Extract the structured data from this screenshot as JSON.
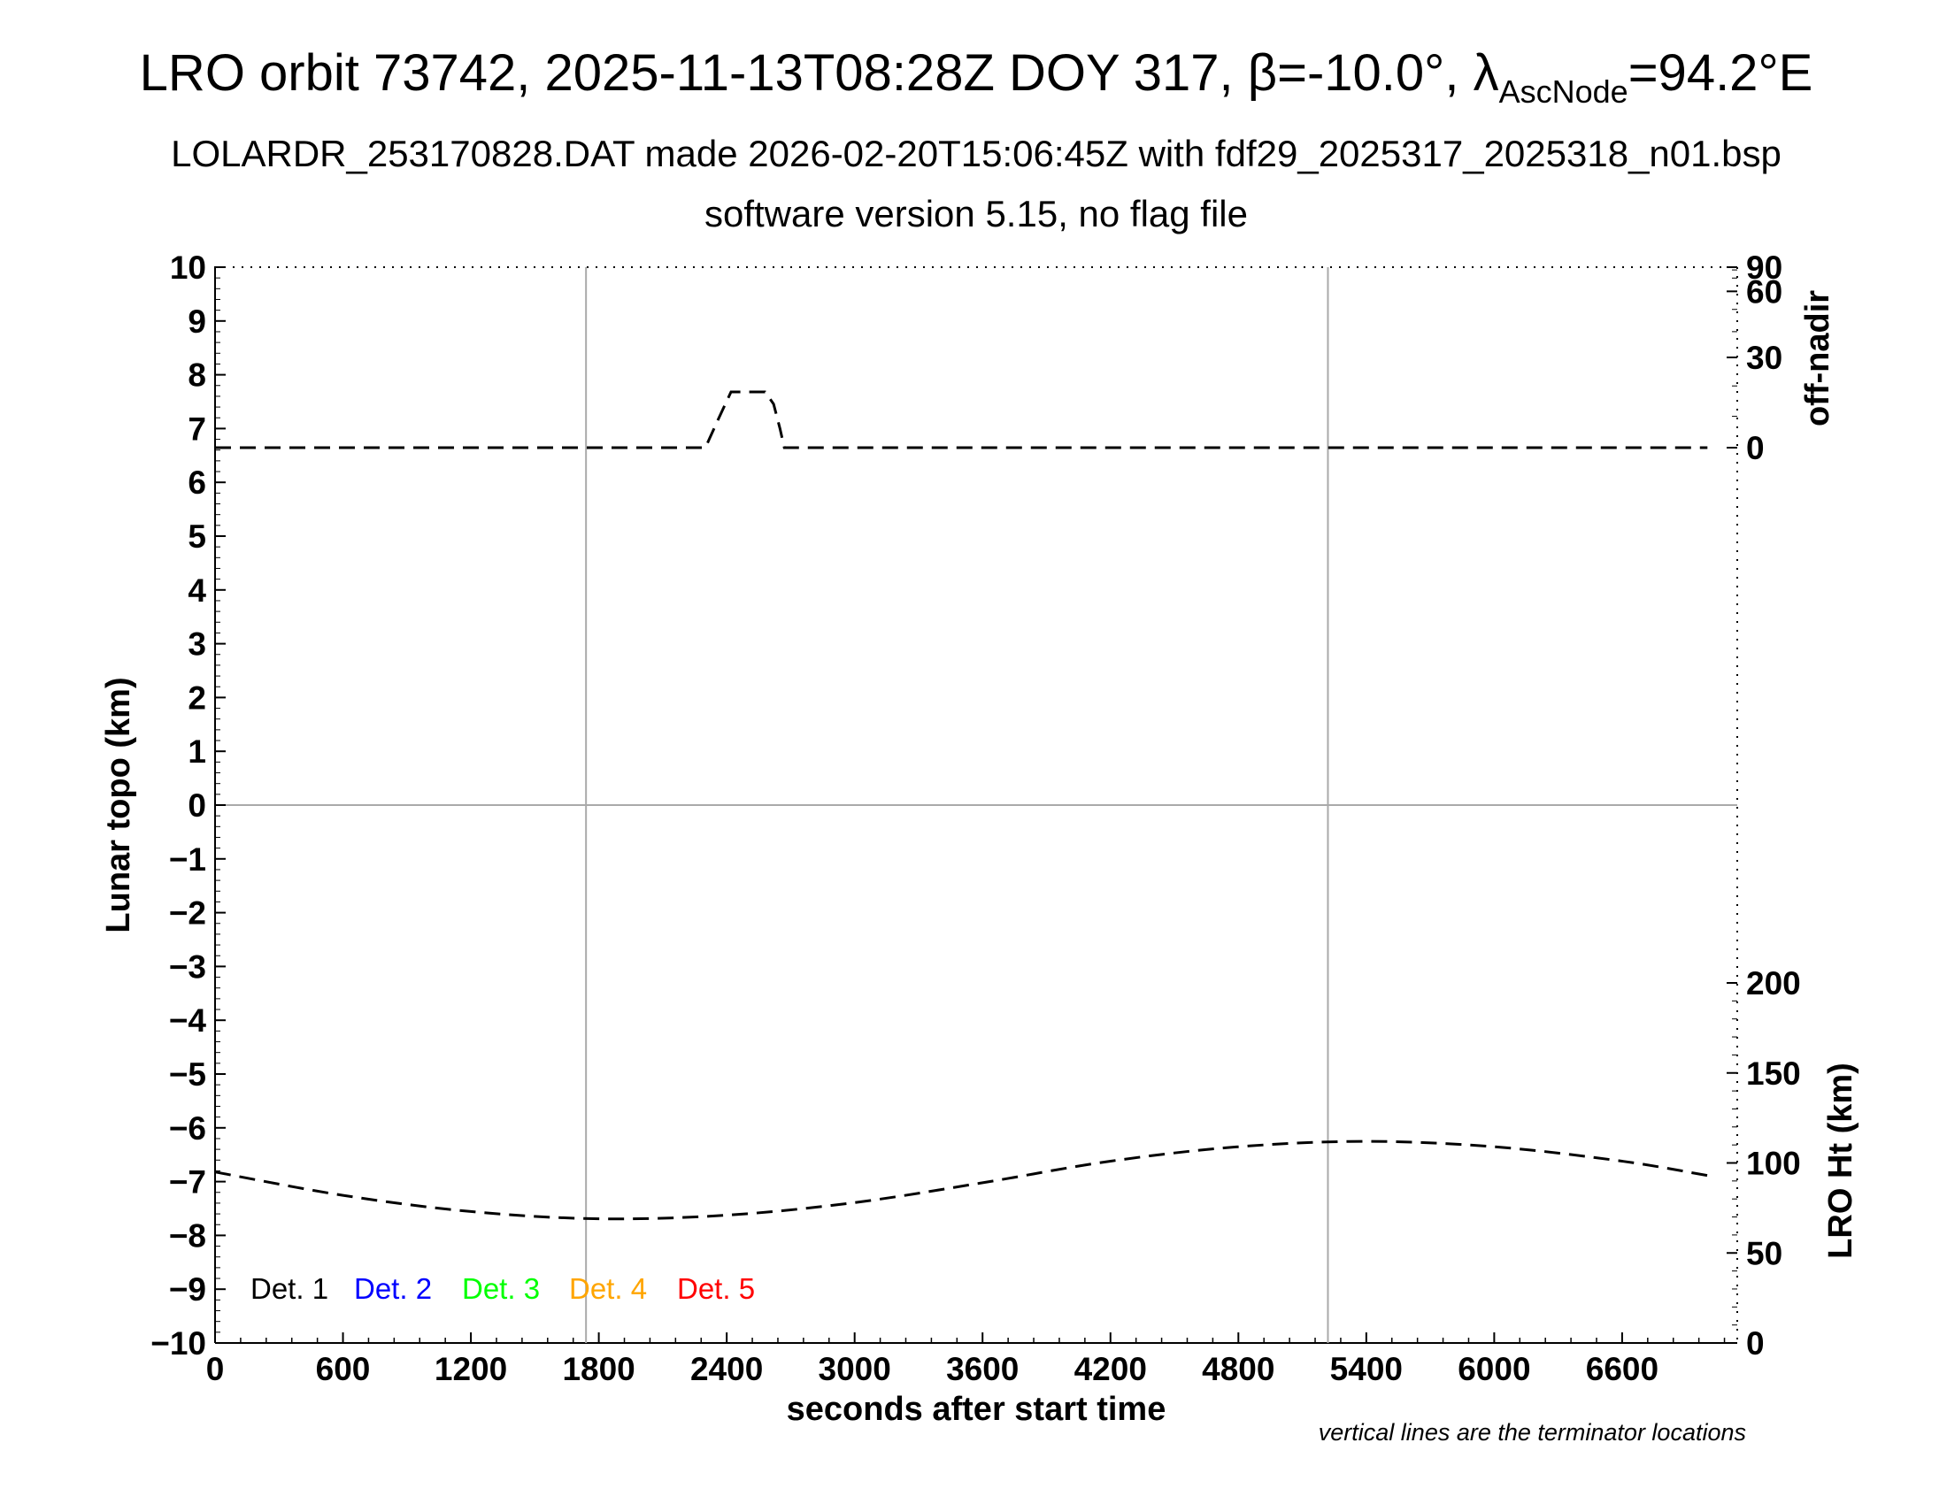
{
  "header": {
    "title_main": "LRO orbit 73742, 2025-11-13T08:28Z DOY 317, β=-10.0°, λ",
    "title_sub": "AscNode",
    "title_tail": "=94.2°E",
    "subtitle1": "LOLARDR_253170828.DAT made 2026-02-20T15:06:45Z with fdf29_2025317_2025318_n01.bsp",
    "subtitle2": "software version 5.15, no flag file"
  },
  "footnote": "vertical lines are the terminator locations",
  "colors": {
    "det1": "#000000",
    "det2": "#0000ff",
    "det3": "#00ff00",
    "det4": "#ffa500",
    "det5": "#ff0000",
    "grid": "#aaaaaa"
  },
  "chart_data": {
    "type": "line",
    "xlabel": "seconds after start time",
    "xlim": [
      0,
      7140
    ],
    "xticks": [
      0,
      600,
      1200,
      1800,
      2400,
      3000,
      3600,
      4200,
      4800,
      5400,
      6000,
      6600
    ],
    "ylabel_left": "Lunar topo (km)",
    "ylim_left": [
      -10,
      10
    ],
    "yticks_left": [
      10,
      9,
      8,
      7,
      6,
      5,
      4,
      3,
      2,
      1,
      0,
      -1,
      -2,
      -3,
      -4,
      -5,
      -6,
      -7,
      -8,
      -9,
      -10
    ],
    "ylabel_right_top": "off-nadir",
    "yticks_right_top": [
      90,
      60,
      30,
      0
    ],
    "ylabel_right_bottom": "LRO Ht (km)",
    "ylim_right_bottom": [
      0,
      300
    ],
    "yticks_right_bottom": [
      200,
      150,
      100,
      50,
      0
    ],
    "terminator_lines_x": [
      1740,
      5220
    ],
    "legend": [
      "Det. 1",
      "Det. 2",
      "Det. 3",
      "Det. 4",
      "Det. 5"
    ],
    "series": [
      {
        "name": "off-nadir",
        "x": [
          0,
          600,
          1200,
          1800,
          2300,
          2320,
          2360,
          2420,
          2520,
          2580,
          2620,
          2650,
          2670,
          2700,
          2900,
          3600,
          4800,
          5400,
          6000,
          6600,
          7000
        ],
        "values": [
          0,
          0,
          0,
          0,
          0,
          3,
          9,
          18,
          18,
          18,
          14,
          6,
          0,
          0,
          0,
          0,
          0,
          0,
          0,
          0,
          0
        ]
      },
      {
        "name": "LRO Ht",
        "x": [
          0,
          600,
          1200,
          1800,
          2400,
          3000,
          3600,
          4200,
          4800,
          5400,
          6000,
          6600,
          7000
        ],
        "values": [
          95,
          82,
          73,
          69,
          71,
          78,
          89,
          101,
          109,
          112,
          109,
          101,
          93
        ]
      }
    ]
  }
}
